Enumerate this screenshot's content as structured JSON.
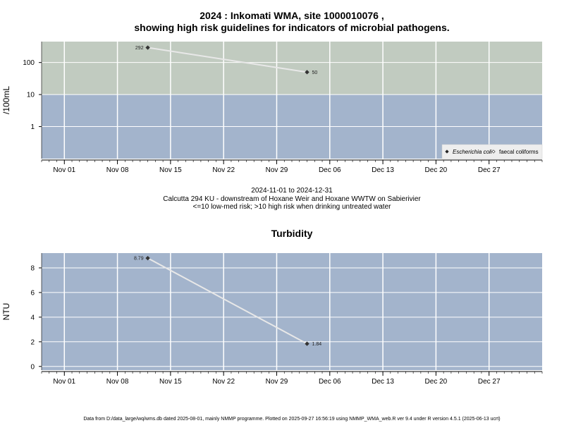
{
  "page": {
    "footer": "Data from D:/data_large/wq/wms.db dated 2025-08-01, mainly NMMP programme. Plotted on 2025-09-27 16:56:19 using NMMP_WMA_web.R ver 9.4 under R version 4.5.1 (2025-06-13 ucrt)"
  },
  "chart_data": [
    {
      "type": "line",
      "title_line1": "2024 : Inkomati WMA, site 1000010076 ,",
      "title_line2": "showing high risk guidelines for indicators of microbial pathogens.",
      "subtitle_lines": [
        "2024-11-01 to 2024-12-31",
        "Calcutta 294 KU - downstream of Hoxane Weir and Hoxane WWTW on Sabierivier",
        "<=10 low-med risk; >10 high risk when drinking untreated water"
      ],
      "ylabel": "/100mL",
      "yscale": "log",
      "ylim": [
        0.1,
        450
      ],
      "xlim": [
        "2024-10-29",
        "2025-01-03"
      ],
      "x_ticks": [
        {
          "date": "2024-11-01",
          "label": "Nov 01"
        },
        {
          "date": "2024-11-08",
          "label": "Nov 08"
        },
        {
          "date": "2024-11-15",
          "label": "Nov 15"
        },
        {
          "date": "2024-11-22",
          "label": "Nov 22"
        },
        {
          "date": "2024-11-29",
          "label": "Nov 29"
        },
        {
          "date": "2024-12-06",
          "label": "Dec 06"
        },
        {
          "date": "2024-12-13",
          "label": "Dec 13"
        },
        {
          "date": "2024-12-20",
          "label": "Dec 20"
        },
        {
          "date": "2024-12-27",
          "label": "Dec 27"
        }
      ],
      "y_ticks": [
        {
          "value": 1,
          "label": "1"
        },
        {
          "value": 10,
          "label": "10"
        },
        {
          "value": 100,
          "label": "100"
        }
      ],
      "bands": [
        {
          "from": 0.1,
          "to": 10,
          "color": "#a3b4cc"
        },
        {
          "from": 10,
          "to": 450,
          "color": "#c1cbc0"
        }
      ],
      "grid": true,
      "legend_position": "bottom-right",
      "legend": [
        {
          "label": "Escherichia coli",
          "italic": true,
          "marker": "filled-diamond"
        },
        {
          "label": "faecal coliforms",
          "italic": false,
          "marker": "open-diamond"
        }
      ],
      "series": [
        {
          "name": "Escherichia coli",
          "x": [
            "2024-11-12",
            "2024-12-03"
          ],
          "values": [
            292,
            50
          ],
          "labels": [
            "292",
            "50"
          ]
        }
      ],
      "line_color": "#e8e8e8",
      "marker_color": "#333333"
    },
    {
      "type": "line",
      "title": "Turbidity",
      "ylabel": "NTU",
      "yscale": "linear",
      "ylim": [
        -0.3,
        9.2
      ],
      "xlim": [
        "2024-10-29",
        "2025-01-03"
      ],
      "x_ticks": [
        {
          "date": "2024-11-01",
          "label": "Nov 01"
        },
        {
          "date": "2024-11-08",
          "label": "Nov 08"
        },
        {
          "date": "2024-11-15",
          "label": "Nov 15"
        },
        {
          "date": "2024-11-22",
          "label": "Nov 22"
        },
        {
          "date": "2024-11-29",
          "label": "Nov 29"
        },
        {
          "date": "2024-12-06",
          "label": "Dec 06"
        },
        {
          "date": "2024-12-13",
          "label": "Dec 13"
        },
        {
          "date": "2024-12-20",
          "label": "Dec 20"
        },
        {
          "date": "2024-12-27",
          "label": "Dec 27"
        }
      ],
      "y_ticks": [
        {
          "value": 0,
          "label": "0"
        },
        {
          "value": 2,
          "label": "2"
        },
        {
          "value": 4,
          "label": "4"
        },
        {
          "value": 6,
          "label": "6"
        },
        {
          "value": 8,
          "label": "8"
        }
      ],
      "bands": [
        {
          "from": -0.3,
          "to": 9.2,
          "color": "#a3b4cc"
        }
      ],
      "grid": true,
      "series": [
        {
          "x": [
            "2024-11-12",
            "2024-12-03"
          ],
          "values": [
            8.79,
            1.84
          ],
          "labels": [
            "8.79",
            "1.84"
          ]
        }
      ],
      "line_color": "#e8e8e8",
      "marker_color": "#333333"
    }
  ]
}
